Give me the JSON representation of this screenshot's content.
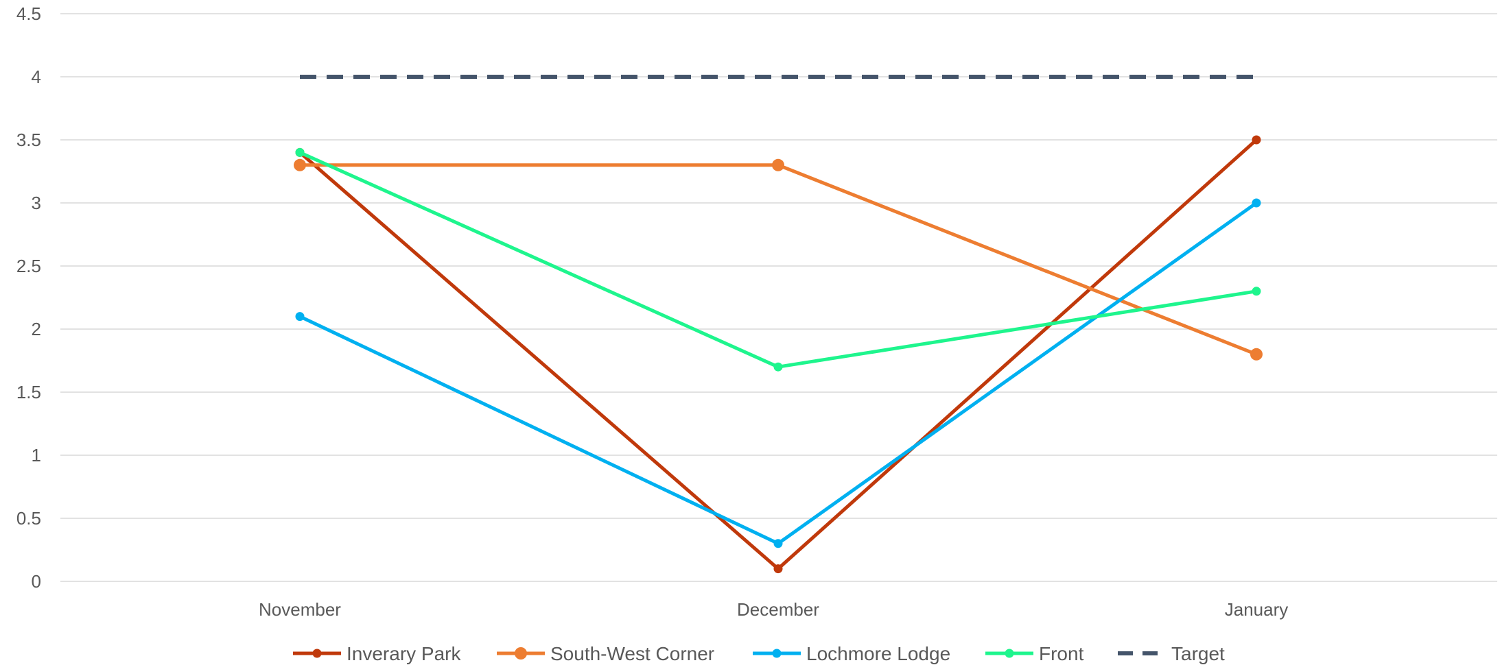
{
  "chart_data": {
    "type": "line",
    "title": "",
    "xlabel": "",
    "ylabel": "",
    "categories": [
      "November",
      "December",
      "January"
    ],
    "ylim": [
      0,
      4.5
    ],
    "yticks": [
      "0",
      "0.5",
      "1",
      "1.5",
      "2",
      "2.5",
      "3",
      "3.5",
      "4",
      "4.5"
    ],
    "grid": "horizontal",
    "legend_position": "bottom",
    "series": [
      {
        "name": "Inverary Park",
        "values": [
          3.4,
          0.1,
          3.5
        ],
        "color": "#C0390B",
        "marker": "dot",
        "dashed": false
      },
      {
        "name": "South-West Corner",
        "values": [
          3.3,
          3.3,
          1.8
        ],
        "color": "#ED7D31",
        "marker": "dot-large",
        "dashed": false
      },
      {
        "name": "Lochmore Lodge",
        "values": [
          2.1,
          0.3,
          3.0
        ],
        "color": "#00B0F0",
        "marker": "dot",
        "dashed": false
      },
      {
        "name": "Front",
        "values": [
          3.4,
          1.7,
          2.3
        ],
        "color": "#1EF58D",
        "marker": "dot",
        "dashed": false
      },
      {
        "name": "Target",
        "values": [
          4,
          4,
          4
        ],
        "color": "#44546A",
        "marker": "none",
        "dashed": true
      }
    ]
  }
}
